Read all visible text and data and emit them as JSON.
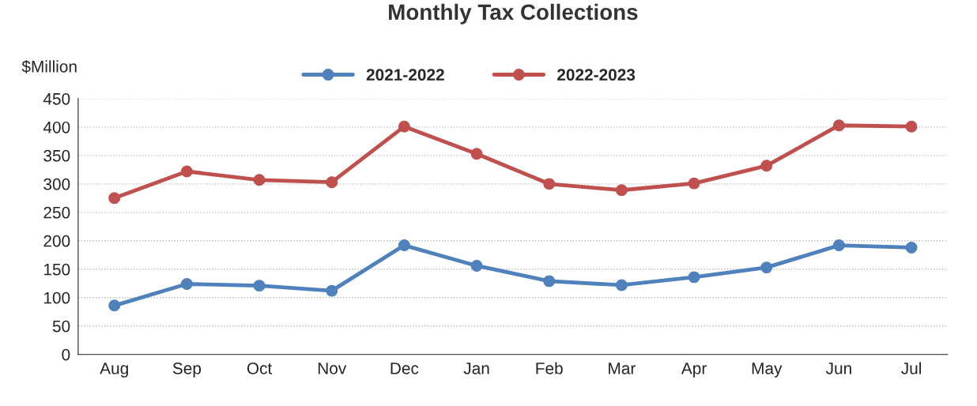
{
  "chart_data": {
    "type": "line",
    "title": "Monthly Tax Collections",
    "ylabel": "$Million",
    "categories": [
      "Aug",
      "Sep",
      "Oct",
      "Nov",
      "Dec",
      "Jan",
      "Feb",
      "Mar",
      "Apr",
      "May",
      "Jun",
      "Jul"
    ],
    "series": [
      {
        "name": "2021-2022",
        "color": "#4f81bd",
        "values": [
          86,
          124,
          121,
          112,
          192,
          156,
          129,
          122,
          136,
          153,
          192,
          188
        ]
      },
      {
        "name": "2022-2023",
        "color": "#c0504d",
        "values": [
          275,
          322,
          307,
          303,
          401,
          353,
          300,
          289,
          301,
          332,
          403,
          401
        ]
      }
    ],
    "ylim": [
      0,
      450
    ],
    "yticks": [
      0,
      50,
      100,
      150,
      200,
      250,
      300,
      350,
      400,
      450
    ],
    "grid": "y",
    "legend": "top",
    "marker": "circle",
    "line_style": "solid"
  }
}
